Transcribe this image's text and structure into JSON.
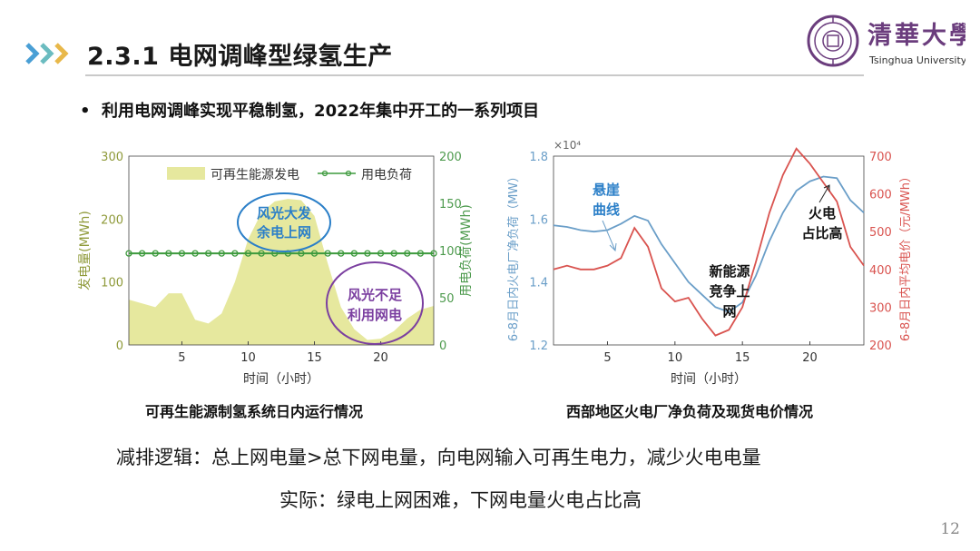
{
  "slide": {
    "title": "2.3.1 电网调峰型绿氢生产",
    "bullet": "利用电网调峰实现平稳制氢，2022年集中开工的一系列项目",
    "logo_text_cn": "清華大學",
    "logo_text_en": "Tsinghua University",
    "page_number": "12"
  },
  "captions": {
    "left": "可再生能源制氢系统日内运行情况",
    "right": "西部地区火电厂净负荷及现货电价情况"
  },
  "body_text": {
    "line1": "减排逻辑：总上网电量>总下网电量，向电网输入可再生电力，减少火电电量",
    "line2": "实际：绿电上网困难，下网电量火电占比高"
  },
  "colors": {
    "arrow1": "#4a9fd5",
    "arrow2": "#6bbcc0",
    "arrow3": "#e8b84a",
    "tsinghua_purple": "#6b3d7d",
    "area_fill": "#e6e89e",
    "load_line": "#3d9a3d",
    "callout_blue": "#2b7fc8",
    "callout_purple": "#7b3fa0",
    "net_load_line": "#6a9ec8",
    "price_line": "#d9534f",
    "axis_olive": "#8f9a3a",
    "axis_green": "#4d9a4d"
  },
  "chart_data": [
    {
      "type": "area",
      "x": [
        1,
        2,
        3,
        4,
        5,
        6,
        7,
        8,
        9,
        10,
        11,
        12,
        13,
        14,
        15,
        16,
        17,
        18,
        19,
        20,
        21,
        22,
        23,
        24
      ],
      "series": [
        {
          "name": "可再生能源发电",
          "axis": "left",
          "values": [
            72,
            66,
            60,
            82,
            82,
            40,
            34,
            50,
            100,
            168,
            210,
            228,
            232,
            230,
            205,
            130,
            60,
            25,
            8,
            10,
            22,
            42,
            56,
            62
          ]
        },
        {
          "name": "用电负荷",
          "axis": "right",
          "values": [
            97,
            97,
            97,
            97,
            97,
            97,
            97,
            97,
            97,
            97,
            97,
            97,
            97,
            97,
            97,
            97,
            97,
            97,
            97,
            97,
            97,
            97,
            97,
            97
          ]
        }
      ],
      "xlabel": "时间（小时）",
      "ylabel": "发电量(MWh)",
      "y2label": "用电负荷(MWh)",
      "xlim": [
        1,
        24
      ],
      "ylim": [
        0,
        300
      ],
      "y2lim": [
        0,
        200
      ],
      "xticks": [
        5,
        10,
        15,
        20
      ],
      "yticks": [
        0,
        100,
        200,
        300
      ],
      "y2ticks": [
        0,
        50,
        100,
        150,
        200
      ],
      "legend_position": "top",
      "annotations": [
        {
          "text_line1": "风光大发",
          "text_line2": "余电上网"
        },
        {
          "text_line1": "风光不足",
          "text_line2": "利用网电"
        }
      ]
    },
    {
      "type": "line",
      "x": [
        1,
        2,
        3,
        4,
        5,
        6,
        7,
        8,
        9,
        10,
        11,
        12,
        13,
        14,
        15,
        16,
        17,
        18,
        19,
        20,
        21,
        22,
        23,
        24
      ],
      "series": [
        {
          "name": "净负荷",
          "axis": "left",
          "values": [
            1.58,
            1.575,
            1.565,
            1.56,
            1.565,
            1.585,
            1.61,
            1.595,
            1.52,
            1.46,
            1.4,
            1.36,
            1.32,
            1.305,
            1.335,
            1.42,
            1.53,
            1.62,
            1.69,
            1.72,
            1.735,
            1.73,
            1.66,
            1.62
          ]
        },
        {
          "name": "现货电价",
          "axis": "right",
          "values": [
            400,
            410,
            400,
            400,
            410,
            430,
            510,
            460,
            350,
            315,
            325,
            270,
            225,
            240,
            300,
            420,
            550,
            650,
            720,
            680,
            630,
            580,
            460,
            410
          ]
        }
      ],
      "xlabel": "时间（小时）",
      "ylabel": "6-8月日内火电厂净负荷（MW）",
      "y2label": "6-8月日内平均电价（元/MWh）",
      "y_multiplier": "×10⁴",
      "xlim": [
        1,
        24
      ],
      "ylim": [
        1.2,
        1.8
      ],
      "y2lim": [
        200,
        700
      ],
      "xticks": [
        5,
        10,
        15,
        20
      ],
      "yticks": [
        "1.2",
        "1.4",
        "1.6",
        "1.8"
      ],
      "y2ticks": [
        200,
        300,
        400,
        500,
        600,
        700
      ],
      "annotations": [
        {
          "text_line1": "悬崖",
          "text_line2": "曲线"
        },
        {
          "text_line1": "新能源",
          "text_line2": "竞争上",
          "text_line3": "网"
        },
        {
          "text_line1": "火电",
          "text_line2": "占比高"
        }
      ]
    }
  ]
}
